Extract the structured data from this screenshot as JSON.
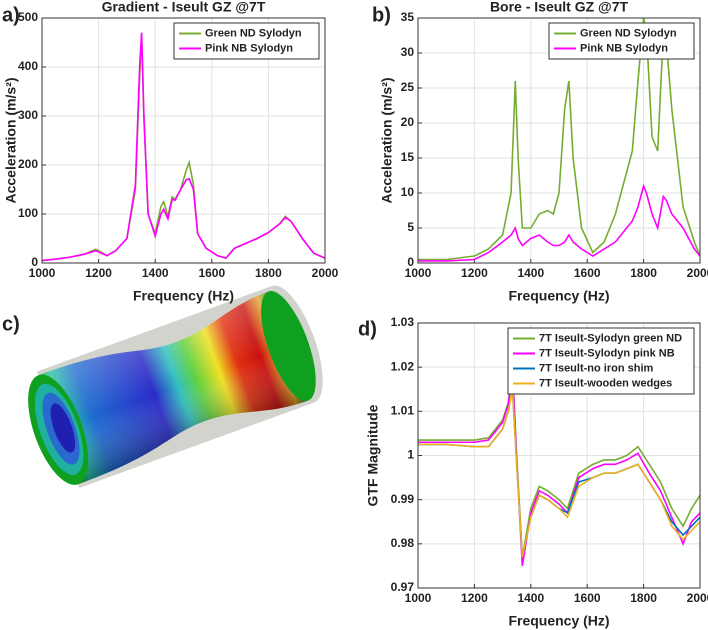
{
  "chart_data": [
    {
      "type": "line",
      "panel_label": "a)",
      "title": "Gradient - Iseult GZ @7T",
      "xlabel": "Frequency (Hz)",
      "ylabel": "Acceleration (m/s²)",
      "x": [
        1000,
        1050,
        1100,
        1150,
        1190,
        1210,
        1230,
        1260,
        1300,
        1330,
        1345,
        1352,
        1360,
        1375,
        1400,
        1420,
        1430,
        1445,
        1460,
        1470,
        1490,
        1510,
        1520,
        1535,
        1550,
        1580,
        1620,
        1650,
        1680,
        1720,
        1760,
        1800,
        1840,
        1860,
        1880,
        1920,
        1960,
        2000
      ],
      "series": [
        {
          "name": "Green ND Sylodyn",
          "color": "#77ac30",
          "values": [
            5,
            8,
            12,
            18,
            28,
            22,
            15,
            25,
            50,
            150,
            380,
            465,
            300,
            100,
            60,
            115,
            125,
            95,
            135,
            130,
            150,
            190,
            205,
            160,
            60,
            30,
            15,
            10,
            30,
            40,
            50,
            62,
            80,
            95,
            85,
            50,
            20,
            10
          ]
        },
        {
          "name": "Pink NB Sylodyn",
          "color": "#ff00ff",
          "values": [
            5,
            8,
            12,
            18,
            25,
            20,
            15,
            25,
            50,
            160,
            400,
            470,
            300,
            100,
            55,
            100,
            110,
            90,
            130,
            128,
            150,
            170,
            172,
            150,
            60,
            30,
            15,
            10,
            30,
            40,
            50,
            62,
            80,
            93,
            85,
            50,
            20,
            10
          ]
        }
      ],
      "xlim": [
        1000,
        2000
      ],
      "xticks": [
        1000,
        1200,
        1400,
        1600,
        1800,
        2000
      ],
      "ylim": [
        0,
        500
      ],
      "yticks": [
        0,
        100,
        200,
        300,
        400,
        500
      ],
      "grid": true,
      "legend": "upper right"
    },
    {
      "type": "line",
      "panel_label": "b)",
      "title": "Bore - Iseult GZ @7T",
      "xlabel": "Frequency (Hz)",
      "ylabel": "Acceleration (m/s²)",
      "x": [
        1000,
        1100,
        1200,
        1250,
        1300,
        1330,
        1345,
        1355,
        1370,
        1400,
        1430,
        1460,
        1480,
        1500,
        1520,
        1535,
        1550,
        1580,
        1620,
        1660,
        1700,
        1740,
        1760,
        1780,
        1800,
        1810,
        1830,
        1850,
        1870,
        1880,
        1900,
        1940,
        1980,
        2000
      ],
      "series": [
        {
          "name": "Green ND Sylodyn",
          "color": "#77ac30",
          "values": [
            0.5,
            0.5,
            1,
            2,
            4,
            10,
            26,
            15,
            5,
            5,
            7,
            7.5,
            7,
            10,
            22,
            26,
            15,
            5,
            1.5,
            3,
            7,
            13,
            16,
            26,
            35,
            33,
            18,
            16,
            33,
            32,
            22,
            8,
            3,
            1
          ]
        },
        {
          "name": "Pink NB Sylodyn",
          "color": "#ff00ff",
          "values": [
            0.3,
            0.3,
            0.5,
            1.5,
            3,
            4,
            5,
            3.5,
            2.5,
            3.5,
            4,
            3,
            2.5,
            2.5,
            3,
            4,
            3,
            2,
            1,
            2,
            3,
            5,
            6,
            8,
            11,
            10,
            7,
            5,
            9.5,
            9,
            7,
            5,
            2,
            1
          ]
        }
      ],
      "xlim": [
        1000,
        2000
      ],
      "xticks": [
        1000,
        1200,
        1400,
        1600,
        1800,
        2000
      ],
      "ylim": [
        0,
        35
      ],
      "yticks": [
        0,
        5,
        10,
        15,
        20,
        25,
        30,
        35
      ],
      "grid": true,
      "legend": "upper right"
    },
    {
      "type": "line",
      "panel_label": "d)",
      "xlabel": "Frequency (Hz)",
      "ylabel": "GTF Magnitude",
      "x": [
        1000,
        1100,
        1200,
        1250,
        1300,
        1320,
        1335,
        1350,
        1370,
        1400,
        1430,
        1460,
        1500,
        1530,
        1570,
        1620,
        1660,
        1700,
        1740,
        1780,
        1820,
        1860,
        1900,
        1940,
        1970,
        2000
      ],
      "series": [
        {
          "name": "7T Iseult-Sylodyn green ND",
          "color": "#77ac30",
          "values": [
            1.0035,
            1.0035,
            1.0035,
            1.004,
            1.008,
            1.012,
            1.02,
            1.0,
            0.977,
            0.988,
            0.993,
            0.992,
            0.99,
            0.988,
            0.996,
            0.998,
            0.999,
            0.999,
            1.0,
            1.002,
            0.998,
            0.994,
            0.988,
            0.984,
            0.988,
            0.991
          ]
        },
        {
          "name": "7T Iseult-Sylodyn pink NB",
          "color": "#ff00ff",
          "values": [
            1.003,
            1.003,
            1.003,
            1.0035,
            1.0075,
            1.0115,
            1.019,
            0.999,
            0.975,
            0.987,
            0.992,
            0.991,
            0.989,
            0.987,
            0.995,
            0.997,
            0.998,
            0.998,
            0.999,
            1.0005,
            0.996,
            0.992,
            0.986,
            0.98,
            0.985,
            0.987
          ]
        },
        {
          "name": "7T Iseult-no iron shim",
          "color": "#0072bd",
          "values": [
            1.0025,
            1.0025,
            1.002,
            1.002,
            1.006,
            1.01,
            1.015,
            0.998,
            0.977,
            0.986,
            0.991,
            0.99,
            0.988,
            0.987,
            0.994,
            0.995,
            0.996,
            0.996,
            0.997,
            0.998,
            0.994,
            0.99,
            0.985,
            0.982,
            0.984,
            0.986
          ]
        },
        {
          "name": "7T Iseult-wooden wedges",
          "color": "#edb120",
          "values": [
            1.0025,
            1.0025,
            1.002,
            1.002,
            1.006,
            1.01,
            1.015,
            0.998,
            0.977,
            0.986,
            0.991,
            0.99,
            0.988,
            0.986,
            0.993,
            0.995,
            0.996,
            0.996,
            0.997,
            0.998,
            0.994,
            0.99,
            0.984,
            0.981,
            0.983,
            0.985
          ]
        }
      ],
      "xlim": [
        1000,
        2000
      ],
      "xticks": [
        1000,
        1200,
        1400,
        1600,
        1800,
        2000
      ],
      "ylim": [
        0.97,
        1.03
      ],
      "yticks": [
        0.97,
        0.98,
        0.99,
        1,
        1.01,
        1.02,
        1.03
      ],
      "grid": true,
      "legend": "upper right"
    }
  ],
  "panel_c": {
    "panel_label": "c)"
  }
}
